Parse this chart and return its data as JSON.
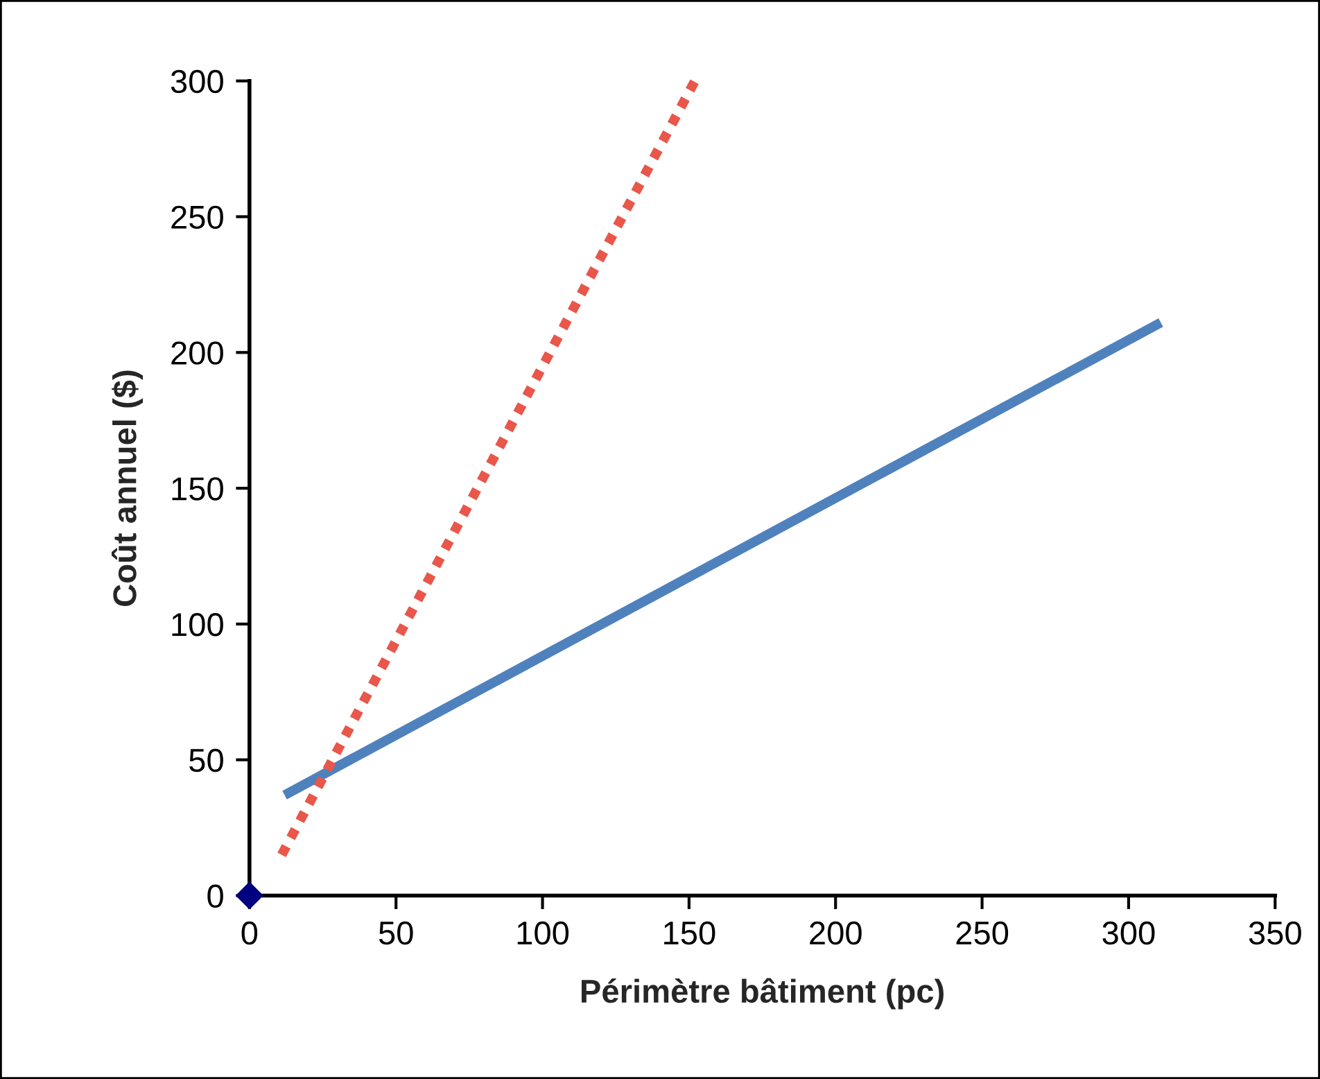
{
  "chart_data": {
    "type": "line",
    "xlabel": "Périmètre bâtiment (pc)",
    "ylabel": "Coût annuel ($)",
    "xlim": [
      0,
      350
    ],
    "xticks": [
      0,
      50,
      100,
      150,
      200,
      250,
      300,
      350
    ],
    "ylim": [
      0,
      300
    ],
    "yticks": [
      0,
      50,
      100,
      150,
      200,
      250,
      300
    ],
    "grid": false,
    "series": [
      {
        "color": "#4f81bd",
        "line_style": "solid",
        "marker": "none",
        "x": [
          12,
          311
        ],
        "values": [
          37,
          211
        ]
      },
      {
        "color": "#e8574a",
        "line_style": "dotted",
        "marker": "none",
        "x": [
          11,
          152
        ],
        "values": [
          15,
          300
        ]
      },
      {
        "type": "scatter",
        "color": "#000080",
        "marker": "diamond",
        "x": [
          0
        ],
        "values": [
          0
        ]
      }
    ]
  }
}
